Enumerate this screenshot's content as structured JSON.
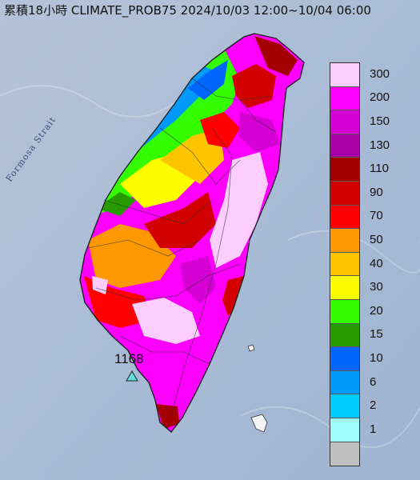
{
  "title": "累積18小時 CLIMATE_PROB75 2024/10/03 12:00~10/04 06:00",
  "strait_label": "Formosa Strait",
  "max_value_label": "1168",
  "legend": [
    {
      "label": "300",
      "color": "#fdcdfd"
    },
    {
      "label": "200",
      "color": "#fd00fd"
    },
    {
      "label": "150",
      "color": "#d400d4"
    },
    {
      "label": "130",
      "color": "#a700a7"
    },
    {
      "label": "110",
      "color": "#a40000"
    },
    {
      "label": "90",
      "color": "#d30000"
    },
    {
      "label": "70",
      "color": "#fd0000"
    },
    {
      "label": "50",
      "color": "#fd9800"
    },
    {
      "label": "40",
      "color": "#fdc400"
    },
    {
      "label": "30",
      "color": "#fdfd00"
    },
    {
      "label": "20",
      "color": "#33fd00"
    },
    {
      "label": "15",
      "color": "#279a00"
    },
    {
      "label": "10",
      "color": "#0066fd"
    },
    {
      "label": "6",
      "color": "#0099fd"
    },
    {
      "label": "2",
      "color": "#00ccfd"
    },
    {
      "label": "1",
      "color": "#9efdfd"
    },
    {
      "label": "",
      "color": "#c0c0c0"
    }
  ]
}
